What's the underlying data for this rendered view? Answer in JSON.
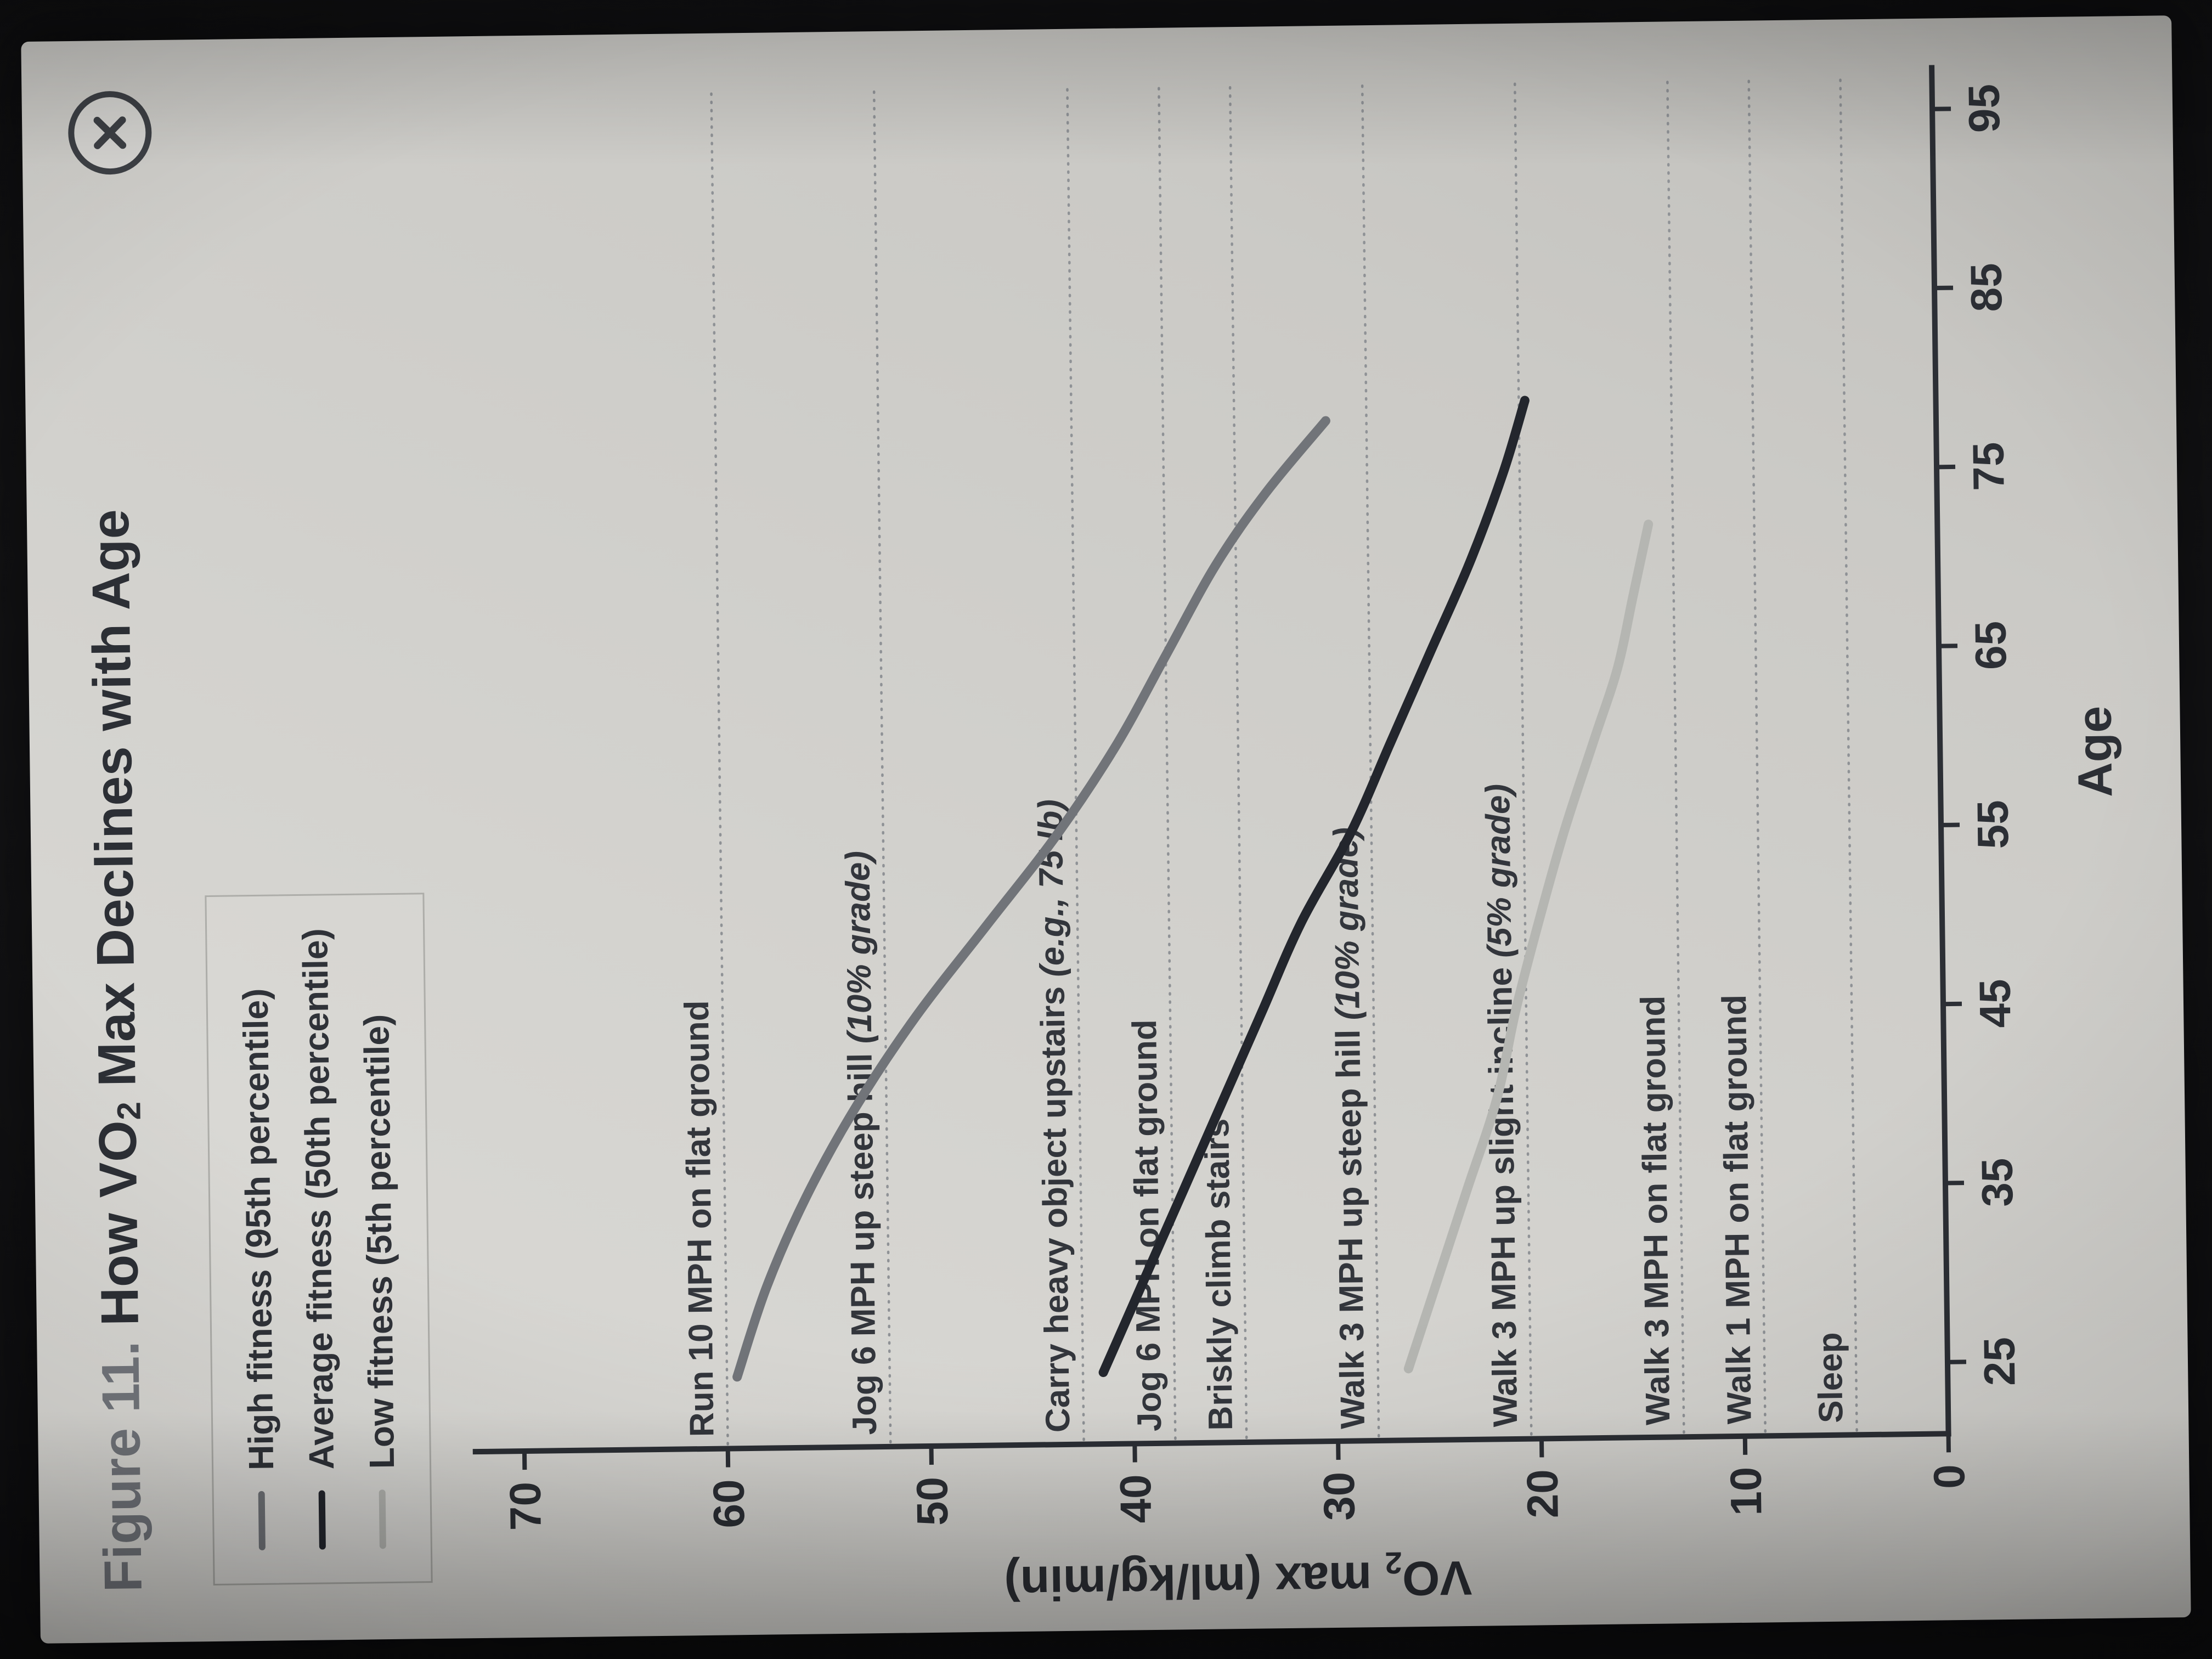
{
  "title": {
    "figure": "Figure 11. ",
    "pre": "How VO",
    "sub": "2",
    "post": " Max Declines with Age"
  },
  "legend": {
    "items": [
      {
        "label": "High fitness (95th percentile)",
        "color": "#717479"
      },
      {
        "label": "Average fitness (50th percentile)",
        "color": "#23262d"
      },
      {
        "label": "Low fitness (5th percentile)",
        "color": "#b5b6b2"
      }
    ]
  },
  "chart_data": {
    "type": "line",
    "title": "Figure 11. How VO2 Max Declines with Age",
    "xlabel": "Age",
    "ylabel": "VO2 max (ml/kg/min)",
    "ylabel_parts": {
      "pre": "VO",
      "sub": "2",
      "post": " max (ml/kg/min)"
    },
    "xlim": [
      21,
      97
    ],
    "ylim": [
      0,
      72
    ],
    "xticks": [
      25,
      35,
      45,
      55,
      65,
      75,
      85,
      95
    ],
    "yticks": [
      0,
      10,
      20,
      30,
      40,
      50,
      60,
      70
    ],
    "grid": false,
    "legend_position": "top-left",
    "reference_lines": [
      {
        "label": "Run 10 MPH on flat ground",
        "italic": "",
        "y": 60
      },
      {
        "label": "Jog 6 MPH up steep hill ",
        "italic": "(10% grade)",
        "y": 52
      },
      {
        "label": "Carry heavy object upstairs ",
        "italic": "(e.g., 75 lb)",
        "y": 42.5
      },
      {
        "label": "Jog 6 MPH on flat ground",
        "italic": "",
        "y": 38
      },
      {
        "label": "Briskly climb stairs",
        "italic": "",
        "y": 34.5
      },
      {
        "label": "Walk 3 MPH up steep hill ",
        "italic": "(10% grade)",
        "y": 28
      },
      {
        "label": "Walk 3 MPH up slight incline ",
        "italic": "(5% grade)",
        "y": 20.5
      },
      {
        "label": "Walk 3 MPH on flat ground",
        "italic": "",
        "y": 13
      },
      {
        "label": "Walk 1 MPH on flat ground",
        "italic": "",
        "y": 9
      },
      {
        "label": "Sleep",
        "italic": "",
        "y": 4.5
      }
    ],
    "series": [
      {
        "name": "High fitness (95th percentile)",
        "color": "#717479",
        "points": [
          [
            25,
            59.5
          ],
          [
            30,
            58
          ],
          [
            35,
            56
          ],
          [
            40,
            53.5
          ],
          [
            45,
            50.5
          ],
          [
            50,
            47
          ],
          [
            55,
            43.5
          ],
          [
            60,
            40.5
          ],
          [
            65,
            38
          ],
          [
            70,
            35.5
          ],
          [
            74,
            33
          ],
          [
            78,
            30
          ]
        ]
      },
      {
        "name": "Average fitness (50th percentile)",
        "color": "#23262d",
        "points": [
          [
            25,
            41.5
          ],
          [
            30,
            39.5
          ],
          [
            35,
            37.5
          ],
          [
            40,
            35.5
          ],
          [
            45,
            33.5
          ],
          [
            50,
            31.5
          ],
          [
            55,
            29
          ],
          [
            60,
            27
          ],
          [
            65,
            25
          ],
          [
            70,
            23
          ],
          [
            75,
            21.3
          ],
          [
            79,
            20.2
          ]
        ]
      },
      {
        "name": "Low fitness (5th percentile)",
        "color": "#b5b6b2",
        "points": [
          [
            25,
            26.5
          ],
          [
            30,
            25
          ],
          [
            35,
            23.5
          ],
          [
            40,
            22
          ],
          [
            45,
            21
          ],
          [
            50,
            19.8
          ],
          [
            55,
            18.5
          ],
          [
            60,
            17
          ],
          [
            64,
            15.8
          ],
          [
            68,
            15
          ],
          [
            72,
            14.2
          ]
        ]
      }
    ]
  }
}
